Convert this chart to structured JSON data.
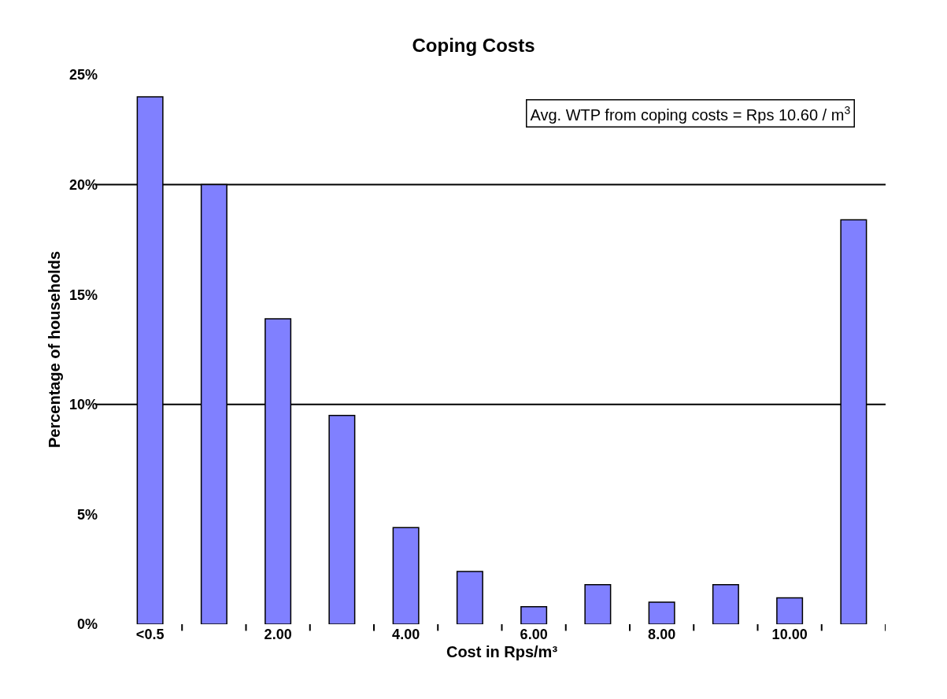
{
  "chart_data": {
    "type": "bar",
    "title": "Coping Costs",
    "xlabel": "Cost in Rps/m³",
    "ylabel": "Percentage of households",
    "categories": [
      "<0.5",
      null,
      "2.00",
      null,
      "4.00",
      null,
      "6.00",
      null,
      "8.00",
      null,
      "10.00",
      null
    ],
    "values": [
      24,
      20,
      13.9,
      9.5,
      4.4,
      2.4,
      0.8,
      1.8,
      1.0,
      1.8,
      1.2,
      18.4
    ],
    "color": "#8080ff",
    "ylim": [
      0,
      25
    ],
    "yticks": [
      {
        "value": 0,
        "label": "0%"
      },
      {
        "value": 5,
        "label": "5%"
      },
      {
        "value": 10,
        "label": "10%"
      },
      {
        "value": 15,
        "label": "15%"
      },
      {
        "value": 20,
        "label": "20%"
      },
      {
        "value": 25,
        "label": "25%"
      }
    ],
    "grid": false,
    "ref_lines": [
      {
        "axis": "y",
        "value": 10,
        "color": "#000000"
      },
      {
        "axis": "y",
        "value": 20,
        "color": "#000000"
      }
    ],
    "annotations": [
      "Avg. WTP from coping costs = Rps 10.60 / m$^{3}$"
    ]
  }
}
